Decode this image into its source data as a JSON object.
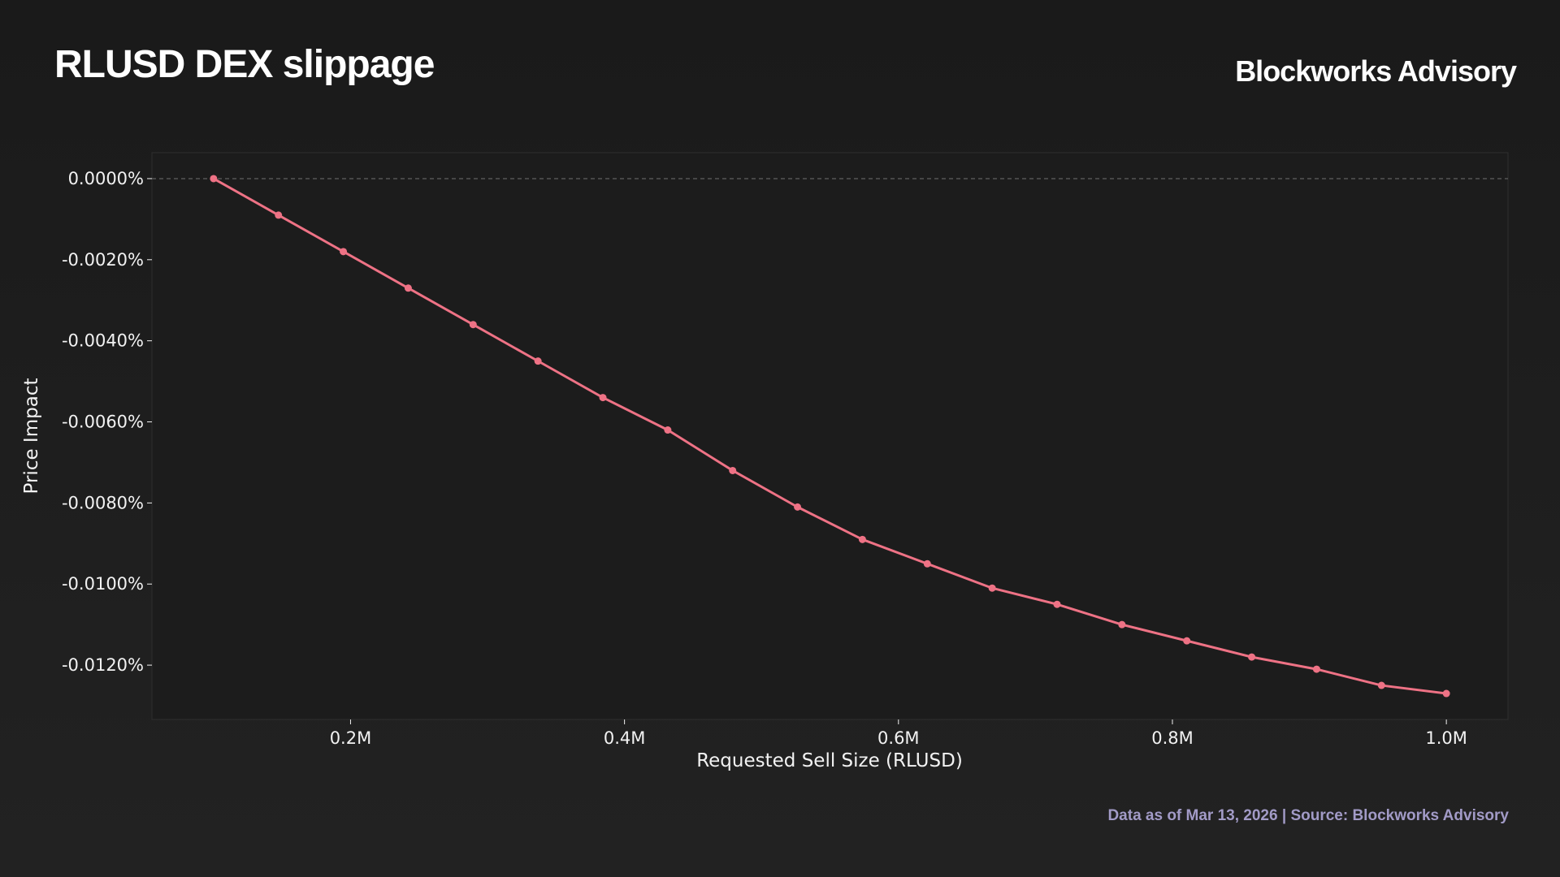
{
  "header": {
    "title": "RLUSD DEX slippage",
    "brand": "Blockworks Advisory"
  },
  "footer": {
    "source": "Data as of Mar 13, 2026 | Source: Blockworks Advisory"
  },
  "colors": {
    "line": "#ee7285",
    "text": "#f2f2f2",
    "footer": "#a29bc7",
    "plot_bg": "#1c1c1c",
    "zero_line": "#6f6f6f"
  },
  "chart_data": {
    "type": "line",
    "title": "",
    "xlabel": "Requested Sell Size (RLUSD)",
    "ylabel": "Price Impact",
    "xlim": [
      55000,
      1045000
    ],
    "ylim": [
      -0.01334,
      0.00064
    ],
    "x_ticks": [
      {
        "value": 200000,
        "label": "0.2M"
      },
      {
        "value": 400000,
        "label": "0.4M"
      },
      {
        "value": 600000,
        "label": "0.6M"
      },
      {
        "value": 800000,
        "label": "0.8M"
      },
      {
        "value": 1000000,
        "label": "1.0M"
      }
    ],
    "y_ticks": [
      {
        "value": 0,
        "label": "0.0000%"
      },
      {
        "value": -0.002,
        "label": "-0.0020%"
      },
      {
        "value": -0.004,
        "label": "-0.0040%"
      },
      {
        "value": -0.006,
        "label": "-0.0060%"
      },
      {
        "value": -0.008,
        "label": "-0.0080%"
      },
      {
        "value": -0.01,
        "label": "-0.0100%"
      },
      {
        "value": -0.012,
        "label": "-0.0120%"
      }
    ],
    "reference_line": {
      "y": 0,
      "style": "dashed"
    },
    "grid": false,
    "series": [
      {
        "x": [
          100000,
          147368,
          194737,
          242105,
          289474,
          336842,
          384211,
          431579,
          478947,
          526316,
          573684,
          621053,
          668421,
          715789,
          763158,
          810526,
          857895,
          905263,
          952632,
          1000000
        ],
        "y": [
          0.0,
          -0.0009,
          -0.0018,
          -0.0027,
          -0.0036,
          -0.0045,
          -0.0054,
          -0.0062,
          -0.0072,
          -0.0081,
          -0.0089,
          -0.0095,
          -0.0101,
          -0.0105,
          -0.011,
          -0.0114,
          -0.0118,
          -0.0121,
          -0.0125,
          -0.0127
        ]
      }
    ]
  }
}
